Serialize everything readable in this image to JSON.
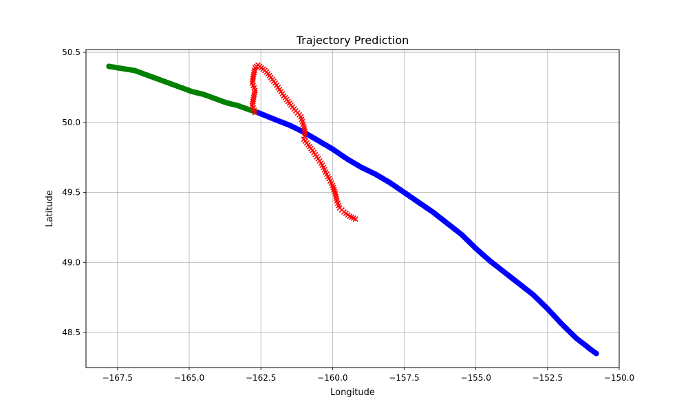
{
  "chart_data": {
    "type": "scatter",
    "title": "Trajectory Prediction",
    "xlabel": "Longitude",
    "ylabel": "Latitude",
    "xlim": [
      -168.6,
      -150.0
    ],
    "ylim": [
      48.25,
      50.52
    ],
    "grid": true,
    "xticks": [
      -167.5,
      -165.0,
      -162.5,
      -160.0,
      -157.5,
      -155.0,
      -152.5,
      -150.0
    ],
    "xtick_labels": [
      "−167.5",
      "−165.0",
      "−162.5",
      "−160.0",
      "−157.5",
      "−155.0",
      "−152.5",
      "−150.0"
    ],
    "yticks": [
      48.5,
      49.0,
      49.5,
      50.0,
      50.5
    ],
    "ytick_labels": [
      "48.5",
      "49.0",
      "49.5",
      "50.0",
      "50.5"
    ],
    "series": [
      {
        "marker": "circle",
        "color": "#008000",
        "x": [
          -167.8,
          -167.5,
          -167.2,
          -166.9,
          -166.5,
          -166.1,
          -165.7,
          -165.3,
          -164.9,
          -164.5,
          -164.1,
          -163.7,
          -163.3,
          -162.9,
          -162.6
        ],
        "y": [
          50.4,
          50.39,
          50.38,
          50.37,
          50.34,
          50.31,
          50.28,
          50.25,
          50.22,
          50.2,
          50.17,
          50.14,
          50.12,
          50.09,
          50.07
        ]
      },
      {
        "marker": "circle",
        "color": "#0000ff",
        "x": [
          -162.6,
          -162.0,
          -161.5,
          -161.0,
          -160.5,
          -160.0,
          -159.5,
          -159.0,
          -158.5,
          -158.0,
          -157.5,
          -157.0,
          -156.5,
          -156.0,
          -155.5,
          -155.0,
          -154.5,
          -154.0,
          -153.5,
          -153.0,
          -152.5,
          -152.0,
          -151.5,
          -151.0,
          -150.8
        ],
        "y": [
          50.07,
          50.02,
          49.98,
          49.93,
          49.87,
          49.81,
          49.74,
          49.68,
          49.63,
          49.57,
          49.5,
          49.43,
          49.36,
          49.28,
          49.2,
          49.1,
          49.01,
          48.93,
          48.85,
          48.77,
          48.67,
          48.56,
          48.46,
          48.38,
          48.35
        ]
      },
      {
        "marker": "x",
        "color": "#ff0000",
        "x": [
          -162.7,
          -162.8,
          -162.75,
          -162.7,
          -162.8,
          -162.75,
          -162.7,
          -162.6,
          -162.3,
          -162.0,
          -161.7,
          -161.4,
          -161.1,
          -161.0,
          -160.95,
          -161.0,
          -160.7,
          -160.4,
          -160.2,
          -160.0,
          -159.9,
          -159.85,
          -159.75,
          -159.6,
          -159.4,
          -159.2
        ],
        "y": [
          50.07,
          50.12,
          50.18,
          50.23,
          50.28,
          50.34,
          50.39,
          50.41,
          50.36,
          50.28,
          50.19,
          50.11,
          50.04,
          49.97,
          49.92,
          49.88,
          49.8,
          49.71,
          49.63,
          49.55,
          49.49,
          49.44,
          49.39,
          49.36,
          49.33,
          49.31
        ]
      }
    ]
  }
}
